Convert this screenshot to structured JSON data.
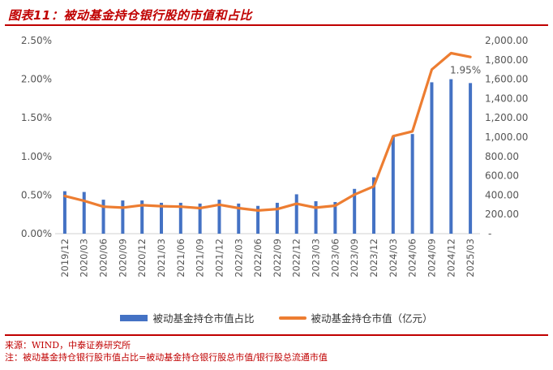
{
  "title": "图表11：被动基金持仓银行股的市值和占比",
  "footer": {
    "source": "来源：WIND，中泰证券研究所",
    "note": "注：被动基金持仓银行股市值占比=被动基金持仓银行股总市值/银行股总流通市值"
  },
  "colors": {
    "bar": "#4472c4",
    "line": "#ed7d31",
    "accent": "#c00000"
  },
  "chart_data": {
    "type": "bar+line",
    "categories": [
      "2019/12",
      "2020/03",
      "2020/06",
      "2020/09",
      "2020/12",
      "2021/03",
      "2021/06",
      "2021/09",
      "2021/12",
      "2022/03",
      "2022/06",
      "2022/09",
      "2022/12",
      "2023/03",
      "2023/06",
      "2023/09",
      "2023/12",
      "2024/03",
      "2024/06",
      "2024/09",
      "2024/12",
      "2025/03"
    ],
    "series": [
      {
        "name": "被动基金持仓市值占比",
        "type": "bar",
        "axis": "left",
        "values": [
          0.55,
          0.54,
          0.44,
          0.43,
          0.43,
          0.4,
          0.4,
          0.39,
          0.44,
          0.39,
          0.36,
          0.4,
          0.51,
          0.42,
          0.41,
          0.58,
          0.73,
          1.26,
          1.29,
          1.96,
          2.0,
          1.95
        ]
      },
      {
        "name": "被动基金持仓市值（亿元）",
        "type": "line",
        "axis": "right",
        "values": [
          390,
          340,
          280,
          270,
          295,
          285,
          280,
          265,
          300,
          265,
          240,
          255,
          310,
          270,
          290,
          405,
          490,
          1010,
          1060,
          1700,
          1870,
          1830
        ]
      }
    ],
    "left_axis": {
      "ticks": [
        "0.00%",
        "0.50%",
        "1.00%",
        "1.50%",
        "2.00%",
        "2.50%"
      ],
      "ylim": [
        0,
        2.5
      ]
    },
    "right_axis": {
      "ticks": [
        "-",
        "200.00",
        "400.00",
        "600.00",
        "800.00",
        "1,000.00",
        "1,200.00",
        "1,400.00",
        "1,600.00",
        "1,800.00",
        "2,000.00"
      ],
      "ylim": [
        0,
        2000
      ]
    },
    "annotation": {
      "text": "1.95%",
      "category": "2025/03"
    },
    "grid": false,
    "legend_position": "bottom"
  }
}
